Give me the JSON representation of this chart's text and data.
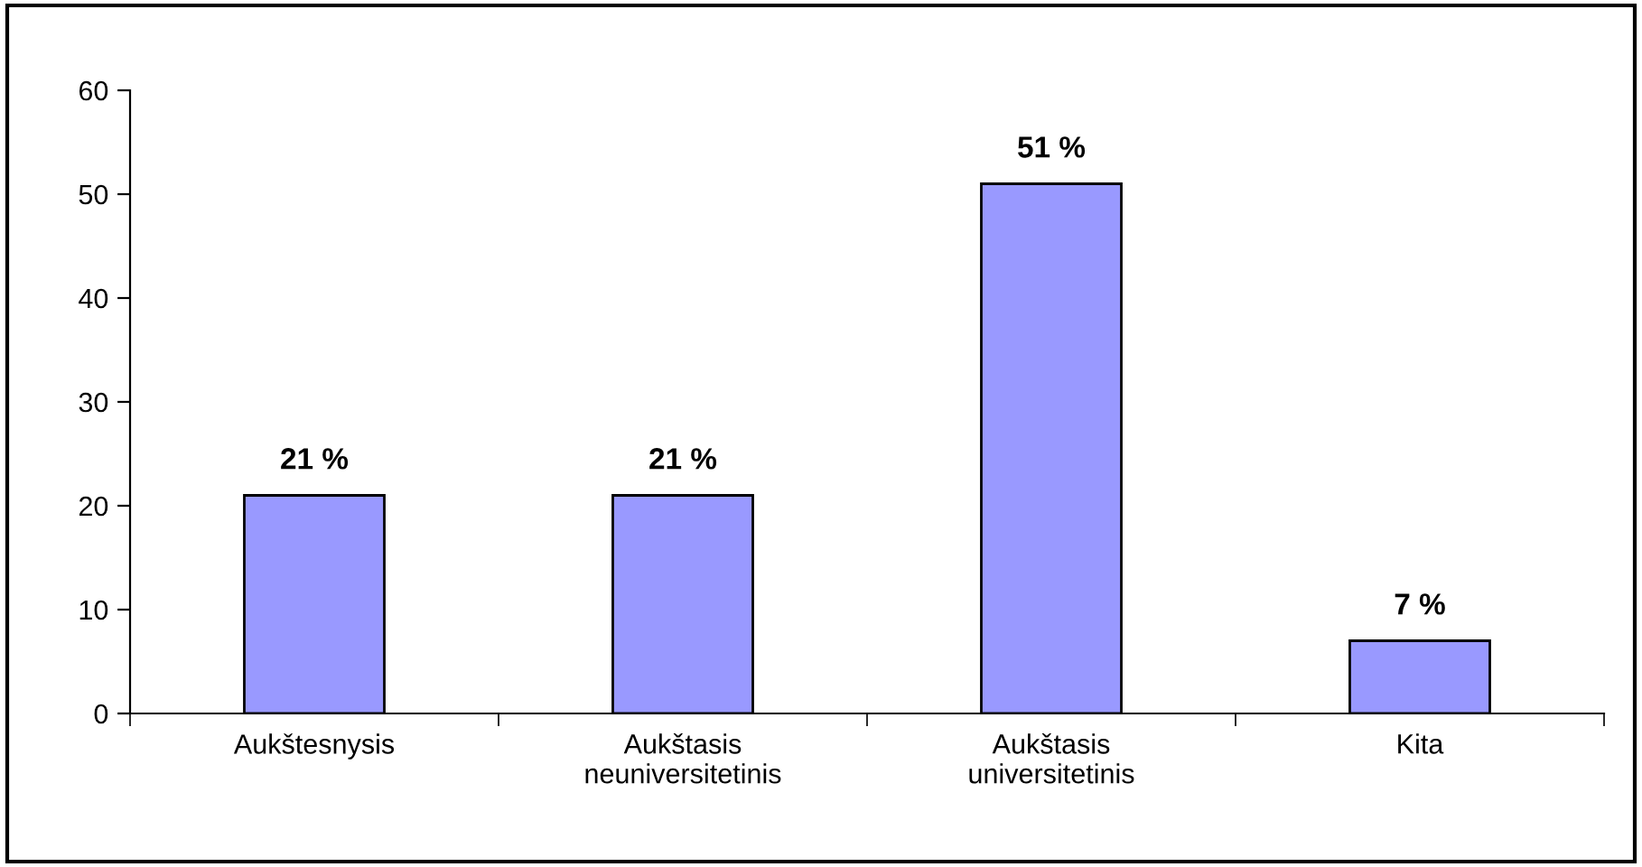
{
  "chart_data": {
    "type": "bar",
    "categories": [
      "Aukštesnysis",
      "Aukštasis\nneuniversitetinis",
      "Aukštasis\nuniversitetinis",
      "Kita"
    ],
    "values": [
      21,
      21,
      51,
      7
    ],
    "color": "#9999ff",
    "value_labels": [
      "21 %",
      "21 %",
      "51 %",
      "7 %"
    ],
    "ylim": [
      0,
      60
    ],
    "yticks": [
      0,
      10,
      20,
      30,
      40,
      50,
      60
    ],
    "grid": false,
    "legend": false
  }
}
